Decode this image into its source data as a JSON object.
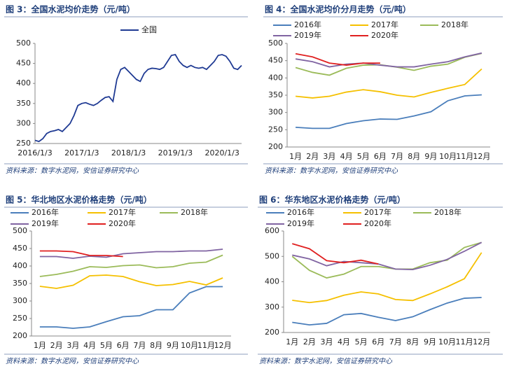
{
  "chart_data": [
    {
      "type": "line",
      "title": "图 3：全国水泥均价走势（元/吨）",
      "source": "资料来源：数字水泥网，安信证券研究中心",
      "categories": [
        "2016/1/3",
        null,
        null,
        null,
        null,
        null,
        null,
        null,
        null,
        null,
        null,
        null,
        "2017/1/3",
        null,
        null,
        null,
        null,
        null,
        null,
        null,
        null,
        null,
        null,
        null,
        "2018/1/3",
        null,
        null,
        null,
        null,
        null,
        null,
        null,
        null,
        null,
        null,
        null,
        "2019/1/3",
        null,
        null,
        null,
        null,
        null,
        null,
        null,
        null,
        null,
        null,
        null,
        "2020/1/3",
        null,
        null,
        null,
        null,
        null
      ],
      "series": [
        {
          "name": "全国",
          "color": "#1f3a93",
          "values": [
            258,
            255,
            262,
            275,
            280,
            282,
            285,
            280,
            290,
            300,
            320,
            345,
            350,
            352,
            348,
            345,
            350,
            358,
            365,
            367,
            355,
            410,
            435,
            440,
            430,
            420,
            410,
            405,
            425,
            435,
            438,
            437,
            435,
            440,
            455,
            470,
            472,
            455,
            445,
            440,
            445,
            440,
            438,
            440,
            435,
            445,
            455,
            470,
            472,
            468,
            455,
            438,
            435,
            445
          ]
        }
      ],
      "ylim": [
        250,
        500
      ],
      "yticks": [
        250,
        300,
        350,
        400,
        450,
        500
      ]
    },
    {
      "type": "line",
      "title": "图 4：全国水泥均价分月走势（元/吨）",
      "source": "资料来源：数字水泥网，安信证券研究中心",
      "categories": [
        "1月",
        "2月",
        "3月",
        "4月",
        "5月",
        "6月",
        "7月",
        "8月",
        "9月",
        "10月",
        "11月",
        "12月"
      ],
      "series": [
        {
          "name": "2016年",
          "color": "#4a7ebb",
          "values": [
            257,
            254,
            254,
            268,
            276,
            281,
            280,
            290,
            302,
            334,
            348,
            351
          ]
        },
        {
          "name": "2017年",
          "color": "#f5c000",
          "values": [
            347,
            342,
            347,
            359,
            366,
            360,
            350,
            345,
            358,
            370,
            381,
            426
          ]
        },
        {
          "name": "2018年",
          "color": "#9bbb59",
          "values": [
            430,
            416,
            408,
            428,
            437,
            438,
            431,
            422,
            434,
            440,
            460,
            471
          ]
        },
        {
          "name": "2019年",
          "color": "#8064a2",
          "values": [
            455,
            447,
            432,
            440,
            443,
            437,
            432,
            432,
            440,
            447,
            461,
            472
          ]
        },
        {
          "name": "2020年",
          "color": "#e02020",
          "values": [
            470,
            461,
            443,
            437,
            443,
            443,
            null,
            null,
            null,
            null,
            null,
            null
          ]
        }
      ],
      "ylim": [
        200,
        500
      ],
      "yticks": [
        200,
        250,
        300,
        350,
        400,
        450,
        500
      ]
    },
    {
      "type": "line",
      "title": "图 5：华北地区水泥价格走势（元/吨）",
      "source": "资料来源：数字水泥网，安信证券研究中心",
      "categories": [
        "1月",
        "2月",
        "3月",
        "4月",
        "5月",
        "6月",
        "7月",
        "8月",
        "9月",
        "10月",
        "11月",
        "12月"
      ],
      "series": [
        {
          "name": "2016年",
          "color": "#4a7ebb",
          "values": [
            226,
            226,
            222,
            226,
            241,
            255,
            258,
            275,
            275,
            323,
            341,
            341
          ]
        },
        {
          "name": "2017年",
          "color": "#f5c000",
          "values": [
            342,
            336,
            345,
            372,
            374,
            370,
            355,
            344,
            347,
            356,
            346,
            366
          ]
        },
        {
          "name": "2018年",
          "color": "#9bbb59",
          "values": [
            370,
            376,
            385,
            398,
            396,
            401,
            403,
            395,
            398,
            408,
            411,
            431
          ]
        },
        {
          "name": "2019年",
          "color": "#8064a2",
          "values": [
            427,
            427,
            422,
            428,
            425,
            435,
            438,
            441,
            441,
            443,
            443,
            448
          ]
        },
        {
          "name": "2020年",
          "color": "#e02020",
          "values": [
            443,
            443,
            441,
            430,
            430,
            427,
            null,
            null,
            null,
            null,
            null,
            null
          ]
        }
      ],
      "ylim": [
        200,
        500
      ],
      "yticks": [
        200,
        250,
        300,
        350,
        400,
        450,
        500
      ]
    },
    {
      "type": "line",
      "title": "图 6：华东地区水泥价格走势（元/吨）",
      "source": "资料来源：数字水泥网，安信证券研究中心",
      "categories": [
        "1月",
        "2月",
        "3月",
        "4月",
        "5月",
        "6月",
        "7月",
        "8月",
        "9月",
        "10月",
        "11月",
        "12月"
      ],
      "series": [
        {
          "name": "2016年",
          "color": "#4a7ebb",
          "values": [
            240,
            230,
            236,
            270,
            275,
            260,
            247,
            262,
            290,
            316,
            335,
            338
          ]
        },
        {
          "name": "2017年",
          "color": "#f5c000",
          "values": [
            327,
            318,
            326,
            347,
            360,
            352,
            330,
            326,
            352,
            380,
            412,
            515
          ]
        },
        {
          "name": "2018年",
          "color": "#9bbb59",
          "values": [
            500,
            445,
            415,
            430,
            460,
            460,
            450,
            450,
            475,
            485,
            535,
            555
          ]
        },
        {
          "name": "2019年",
          "color": "#8064a2",
          "values": [
            505,
            490,
            463,
            480,
            475,
            470,
            450,
            448,
            465,
            488,
            520,
            555
          ]
        },
        {
          "name": "2020年",
          "color": "#e02020",
          "values": [
            550,
            530,
            483,
            475,
            485,
            470,
            null,
            null,
            null,
            null,
            null,
            null
          ]
        }
      ],
      "ylim": [
        200,
        600
      ],
      "yticks": [
        200,
        300,
        400,
        500,
        600
      ]
    }
  ]
}
